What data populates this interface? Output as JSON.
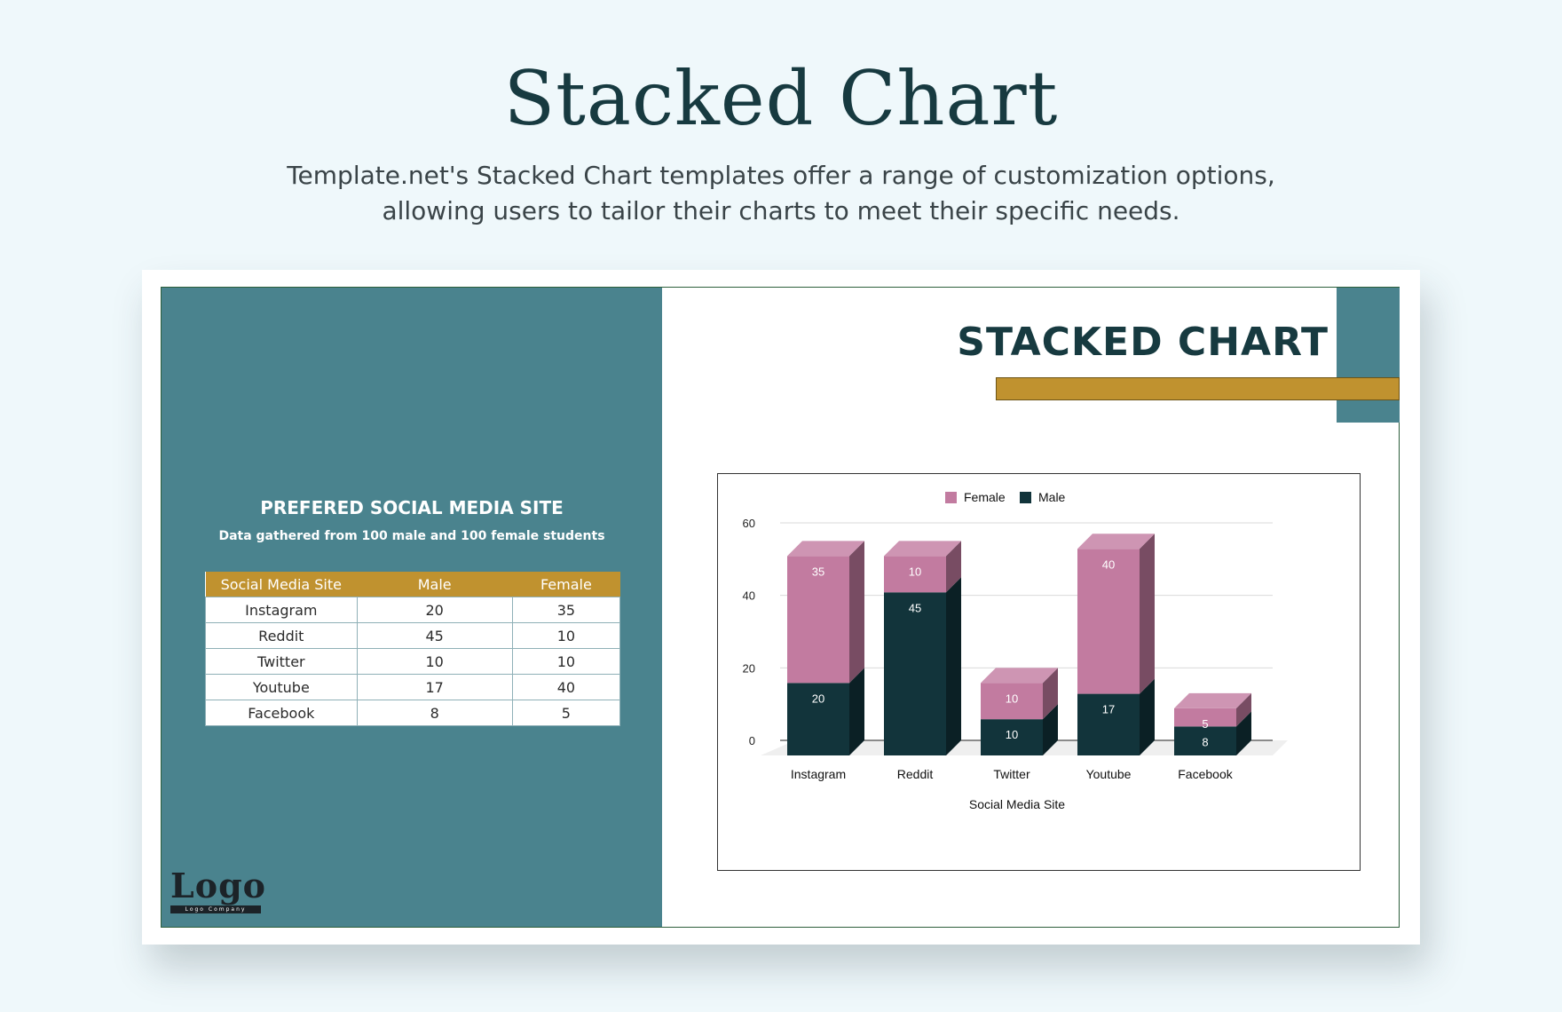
{
  "page": {
    "title": "Stacked Chart",
    "subtitle": "Template.net's Stacked Chart templates offer a range of customization options, allowing users to tailor their charts to meet their specific needs."
  },
  "slide": {
    "header_title": "STACKED CHART",
    "table_title": "PREFERED SOCIAL MEDIA SITE",
    "table_subtitle": "Data gathered from 100 male and 100 female students",
    "table_headers": [
      "Social Media Site",
      "Male",
      "Female"
    ],
    "table_rows": [
      [
        "Instagram",
        "20",
        "35"
      ],
      [
        "Reddit",
        "45",
        "10"
      ],
      [
        "Twitter",
        "10",
        "10"
      ],
      [
        "Youtube",
        "17",
        "40"
      ],
      [
        "Facebook",
        "8",
        "5"
      ]
    ],
    "logo": "Logo",
    "logo_sub": "Logo Company"
  },
  "colors": {
    "teal": "#4a838e",
    "gold": "#c0922f",
    "female": "#c27ba0",
    "male": "#12343b",
    "title": "#173a40"
  },
  "chart_data": {
    "type": "bar",
    "stacked": true,
    "style": "3d",
    "categories": [
      "Instagram",
      "Reddit",
      "Twitter",
      "Youtube",
      "Facebook"
    ],
    "series": [
      {
        "name": "Male",
        "values": [
          20,
          45,
          10,
          17,
          8
        ],
        "color": "#12343b"
      },
      {
        "name": "Female",
        "values": [
          35,
          10,
          10,
          40,
          5
        ],
        "color": "#c27ba0"
      }
    ],
    "legend_order": [
      "Female",
      "Male"
    ],
    "xlabel": "Social Media Site",
    "ylabel": "",
    "yticks": [
      0,
      20,
      40,
      60
    ],
    "ylim": [
      0,
      60
    ],
    "grid": true,
    "legend_position": "top"
  }
}
